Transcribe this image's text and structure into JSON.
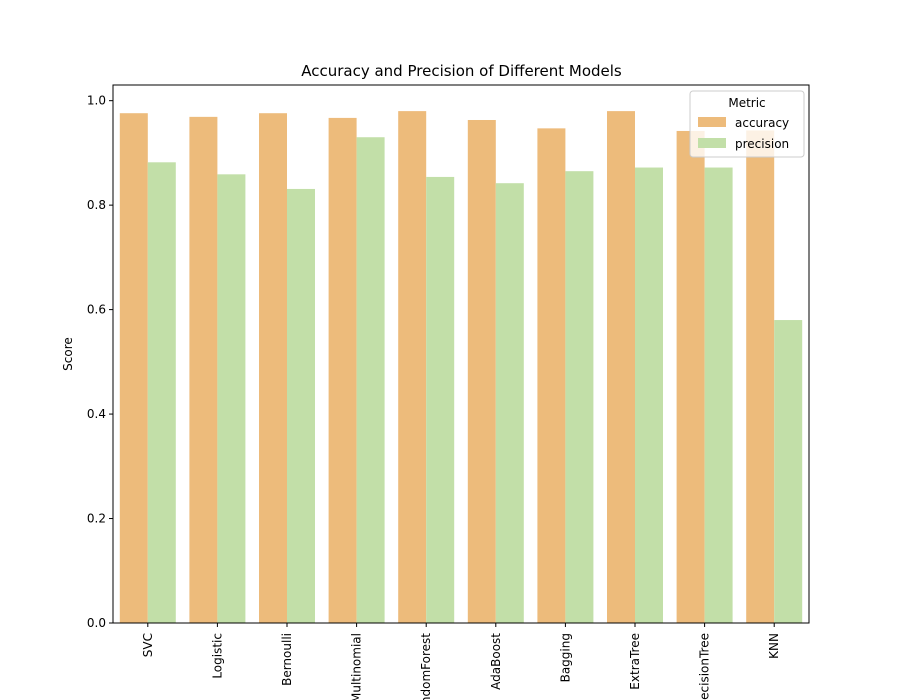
{
  "chart_data": {
    "type": "bar",
    "title": "Accuracy and Precision of Different Models",
    "xlabel": "",
    "ylabel": "Score",
    "ylim": [
      0,
      1.03
    ],
    "yticks": [
      "0.0",
      "0.2",
      "0.4",
      "0.6",
      "0.8",
      "1.0"
    ],
    "categories": [
      "SVC",
      "Logistic",
      "Bernoulli",
      "Multinomial",
      "RandomForest",
      "AdaBoost",
      "Bagging",
      "ExtraTree",
      "DecisionTree",
      "KNN"
    ],
    "series": [
      {
        "name": "accuracy",
        "color": "#EDBB7B",
        "values": [
          0.976,
          0.969,
          0.976,
          0.967,
          0.98,
          0.963,
          0.947,
          0.98,
          0.942,
          0.943
        ]
      },
      {
        "name": "precision",
        "color": "#C2DFA8",
        "values": [
          0.882,
          0.859,
          0.831,
          0.93,
          0.854,
          0.842,
          0.865,
          0.872,
          0.872,
          0.58
        ]
      }
    ],
    "legend": {
      "title": "Metric",
      "placement": "top-right"
    },
    "grid": false
  }
}
